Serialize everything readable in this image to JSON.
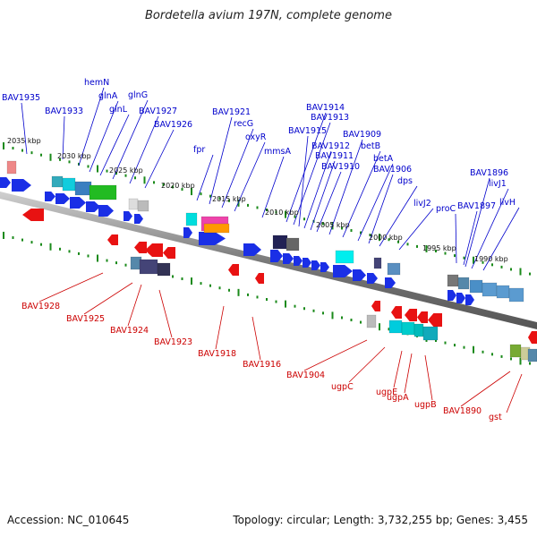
{
  "title": "Bordetella avium 197N, complete genome",
  "footer": {
    "accession": "Accession: NC_010645",
    "summary": "Topology: circular; Length: 3,732,255 bp; Genes: 3,455"
  },
  "colors": {
    "forward_label": "#0000cc",
    "reverse_label": "#cc0000",
    "forward_gene": "#1a2fe6",
    "reverse_gene": "#e81212",
    "tick": "#1a8a1a",
    "backbone": "#8a8a8a"
  },
  "kbp_markers": [
    {
      "label": "2035 kbp"
    },
    {
      "label": "2030 kbp"
    },
    {
      "label": "2025 kbp"
    },
    {
      "label": "2020 kbp"
    },
    {
      "label": "2015 kbp"
    },
    {
      "label": "2010 kbp"
    },
    {
      "label": "2005 kbp"
    },
    {
      "label": "2000 kbp"
    },
    {
      "label": "1995 kbp"
    },
    {
      "label": "1990 kbp"
    }
  ],
  "forward_labels": [
    "BAV1935",
    "BAV1933",
    "hemN",
    "glnA",
    "glnL",
    "glnG",
    "BAV1927",
    "BAV1926",
    "fpr",
    "BAV1921",
    "recG",
    "oxyR",
    "mmsA",
    "BAV1914",
    "BAV1913",
    "BAV1915",
    "BAV1912",
    "BAV1911",
    "BAV1910",
    "BAV1909",
    "betB",
    "betA",
    "BAV1906",
    "dps",
    "livJ2",
    "proC",
    "BAV1897",
    "BAV1896",
    "livJ1",
    "livH"
  ],
  "reverse_labels": [
    "BAV1928",
    "BAV1925",
    "BAV1924",
    "BAV1923",
    "BAV1918",
    "BAV1916",
    "BAV1904",
    "ugpC",
    "ugpE",
    "ugpA",
    "ugpB",
    "BAV1890",
    "gst"
  ]
}
